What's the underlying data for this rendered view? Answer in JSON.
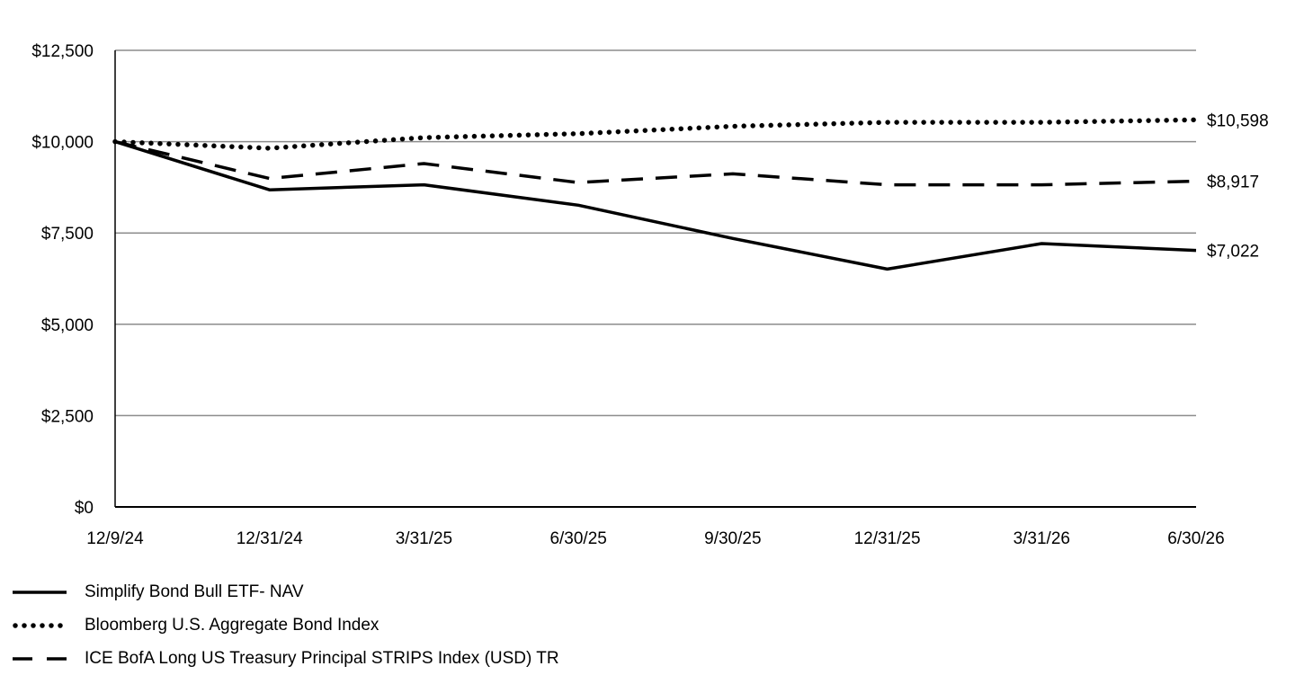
{
  "chart_data": {
    "type": "line",
    "title": "",
    "xlabel": "",
    "ylabel": "",
    "categories": [
      "12/9/24",
      "12/31/24",
      "3/31/25",
      "6/30/25",
      "9/30/25",
      "12/31/25",
      "3/31/26",
      "6/30/26"
    ],
    "ylim": [
      0,
      12500
    ],
    "yticks": [
      0,
      2500,
      5000,
      7500,
      10000,
      12500
    ],
    "ytick_labels": [
      "$0",
      "$2,500",
      "$5,000",
      "$7,500",
      "$10,000",
      "$12,500"
    ],
    "grid": true,
    "legend_position": "bottom",
    "series": [
      {
        "name": "Simplify Bond Bull ETF- NAV",
        "style": "solid",
        "color": "#000000",
        "values": [
          10000,
          8680,
          8820,
          8260,
          7350,
          6510,
          7210,
          7022
        ],
        "end_label": "$7,022"
      },
      {
        "name": "Bloomberg U.S. Aggregate Bond Index",
        "style": "dotted",
        "color": "#000000",
        "values": [
          10000,
          9820,
          10110,
          10220,
          10420,
          10530,
          10530,
          10598
        ],
        "end_label": "$10,598"
      },
      {
        "name": "ICE BofA Long US Treasury Principal STRIPS Index (USD) TR",
        "style": "dashed",
        "color": "#000000",
        "values": [
          10000,
          8990,
          9400,
          8880,
          9120,
          8820,
          8820,
          8917
        ],
        "end_label": "$8,917"
      }
    ]
  }
}
